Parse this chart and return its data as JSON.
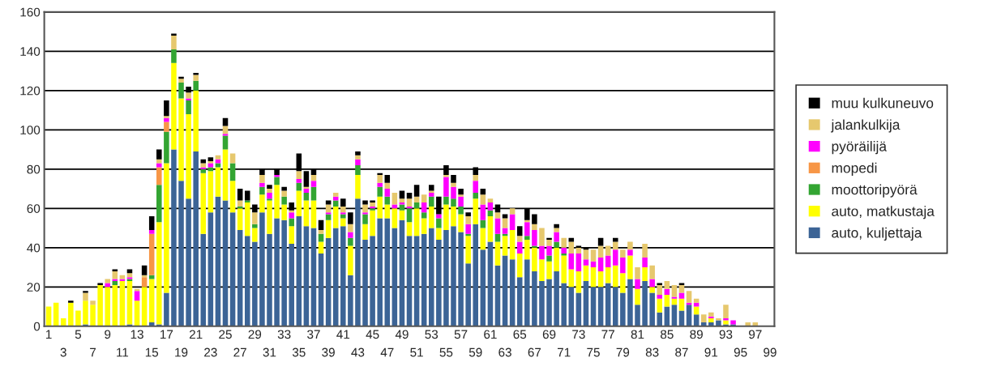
{
  "chart_data": {
    "type": "bar",
    "stacked": true,
    "categories": [
      "1",
      null,
      "3",
      null,
      "5",
      null,
      "7",
      null,
      "9",
      null,
      "11",
      null,
      "13",
      null,
      "15",
      null,
      "17",
      null,
      "19",
      null,
      "21",
      null,
      "23",
      null,
      "25",
      null,
      "27",
      null,
      "29",
      null,
      "31",
      null,
      "33",
      null,
      "35",
      null,
      "37",
      null,
      "39",
      null,
      "41",
      null,
      "43",
      null,
      "45",
      null,
      "47",
      null,
      "49",
      null,
      "51",
      null,
      "53",
      null,
      "55",
      null,
      "57",
      null,
      "59",
      null,
      "61",
      null,
      "63",
      null,
      "65",
      null,
      "67",
      null,
      "69",
      null,
      "71",
      null,
      "73",
      null,
      "75",
      null,
      "77",
      null,
      "79",
      null,
      "81",
      null,
      "83",
      null,
      "85",
      null,
      "87",
      null,
      "89",
      null,
      "91",
      null,
      "93",
      null,
      "95",
      null,
      "97",
      null,
      "99"
    ],
    "series": [
      {
        "name": "auto, kuljettaja",
        "color": "#3c6496",
        "values": [
          0,
          0,
          0,
          0,
          0,
          1,
          0,
          0,
          0,
          0,
          0,
          1,
          0,
          0,
          2,
          1,
          17,
          90,
          74,
          65,
          89,
          47,
          58,
          66,
          64,
          58,
          49,
          46,
          43,
          58,
          47,
          55,
          54,
          42,
          56,
          51,
          50,
          37,
          45,
          50,
          51,
          26,
          65,
          44,
          46,
          55,
          55,
          50,
          54,
          46,
          46,
          47,
          50,
          44,
          49,
          51,
          48,
          32,
          52,
          39,
          43,
          31,
          36,
          34,
          25,
          34,
          28,
          23,
          24,
          28,
          22,
          20,
          17,
          23,
          20,
          20,
          22,
          20,
          17,
          24,
          11,
          23,
          17,
          7,
          10,
          11,
          8,
          11,
          6,
          2,
          2,
          3,
          1,
          1,
          0,
          0,
          0,
          0,
          0
        ]
      },
      {
        "name": "auto, matkustaja",
        "color": "#ffff00",
        "values": [
          10,
          12,
          4,
          12,
          8,
          12,
          11,
          21,
          20,
          21,
          23,
          22,
          13,
          20,
          22,
          52,
          66,
          44,
          42,
          43,
          31,
          31,
          21,
          15,
          26,
          16,
          11,
          17,
          7,
          9,
          17,
          17,
          8,
          9,
          13,
          13,
          14,
          6,
          9,
          11,
          4,
          15,
          12,
          8,
          13,
          11,
          7,
          10,
          5,
          7,
          14,
          8,
          11,
          6,
          13,
          10,
          9,
          14,
          13,
          11,
          13,
          12,
          10,
          15,
          12,
          10,
          12,
          11,
          9,
          12,
          14,
          9,
          11,
          8,
          10,
          8,
          8,
          11,
          10,
          12,
          8,
          7,
          3,
          7,
          6,
          3,
          6,
          0,
          4,
          0,
          2,
          0,
          2,
          0,
          0,
          0,
          0,
          0,
          0
        ]
      },
      {
        "name": "moottoripyörä",
        "color": "#33a532",
        "values": [
          0,
          0,
          0,
          0,
          0,
          0,
          0,
          0,
          0,
          2,
          0,
          1,
          0,
          0,
          2,
          19,
          16,
          7,
          8,
          7,
          5,
          2,
          2,
          2,
          7,
          9,
          1,
          1,
          2,
          4,
          1,
          4,
          4,
          4,
          4,
          4,
          7,
          4,
          3,
          3,
          2,
          4,
          5,
          5,
          1,
          5,
          4,
          0,
          3,
          7,
          3,
          3,
          5,
          5,
          4,
          4,
          4,
          1,
          3,
          4,
          3,
          4,
          1,
          0,
          0,
          2,
          1,
          0,
          3,
          3,
          1,
          0,
          0,
          0,
          0,
          0,
          0,
          0,
          0,
          0,
          0,
          0,
          0,
          0,
          0,
          0,
          0,
          0,
          0,
          0,
          0,
          0,
          0,
          0,
          0,
          0,
          0,
          0,
          0
        ]
      },
      {
        "name": "mopedi",
        "color": "#f79646",
        "values": [
          0,
          0,
          0,
          0,
          0,
          0,
          0,
          0,
          0,
          0,
          0,
          0,
          0,
          5,
          21,
          9,
          5,
          0,
          0,
          0,
          0,
          0,
          0,
          0,
          0,
          0,
          0,
          0,
          0,
          0,
          0,
          0,
          0,
          0,
          0,
          0,
          0,
          0,
          0,
          0,
          0,
          0,
          0,
          0,
          0,
          0,
          0,
          0,
          0,
          0,
          0,
          0,
          0,
          0,
          0,
          0,
          0,
          0,
          0,
          0,
          0,
          0,
          0,
          0,
          0,
          0,
          0,
          0,
          0,
          0,
          0,
          0,
          0,
          0,
          0,
          0,
          0,
          0,
          0,
          0,
          0,
          0,
          0,
          0,
          0,
          0,
          0,
          0,
          0,
          0,
          0,
          0,
          0,
          0,
          0,
          0,
          0,
          0,
          0
        ]
      },
      {
        "name": "pyöräilijä",
        "color": "#ff00ff",
        "values": [
          0,
          0,
          0,
          0,
          0,
          0,
          0,
          0,
          2,
          1,
          1,
          1,
          5,
          0,
          2,
          2,
          2,
          0,
          0,
          1,
          0,
          1,
          2,
          2,
          1,
          0,
          0,
          0,
          0,
          2,
          3,
          1,
          0,
          3,
          2,
          2,
          3,
          0,
          1,
          2,
          1,
          3,
          3,
          1,
          1,
          2,
          4,
          2,
          1,
          1,
          0,
          5,
          2,
          2,
          10,
          6,
          5,
          5,
          6,
          8,
          4,
          8,
          3,
          8,
          6,
          7,
          8,
          7,
          5,
          5,
          3,
          8,
          9,
          3,
          3,
          7,
          6,
          8,
          8,
          3,
          5,
          5,
          4,
          2,
          3,
          1,
          3,
          1,
          2,
          0,
          1,
          0,
          1,
          2,
          0,
          0,
          0,
          0,
          0
        ]
      },
      {
        "name": "jalankulkija",
        "color": "#e6c86e",
        "values": [
          0,
          0,
          0,
          0,
          0,
          4,
          2,
          0,
          2,
          4,
          2,
          2,
          1,
          1,
          0,
          2,
          1,
          7,
          2,
          3,
          3,
          2,
          1,
          2,
          4,
          5,
          3,
          0,
          6,
          4,
          2,
          0,
          3,
          1,
          4,
          1,
          3,
          2,
          4,
          2,
          3,
          4,
          2,
          4,
          2,
          4,
          3,
          6,
          2,
          4,
          3,
          4,
          1,
          0,
          1,
          2,
          1,
          4,
          3,
          5,
          2,
          3,
          5,
          3,
          3,
          1,
          3,
          9,
          3,
          2,
          5,
          6,
          3,
          5,
          6,
          6,
          5,
          4,
          4,
          4,
          6,
          7,
          7,
          5,
          4,
          6,
          4,
          6,
          2,
          4,
          2,
          1,
          7,
          0,
          0,
          2,
          2,
          0,
          0
        ]
      },
      {
        "name": "muu kulkuneuvo",
        "color": "#000000",
        "values": [
          0,
          0,
          0,
          1,
          0,
          1,
          0,
          1,
          0,
          1,
          0,
          2,
          0,
          5,
          7,
          5,
          8,
          1,
          1,
          3,
          1,
          2,
          2,
          0,
          4,
          0,
          6,
          5,
          4,
          3,
          2,
          3,
          2,
          4,
          9,
          8,
          3,
          5,
          2,
          0,
          4,
          6,
          2,
          2,
          1,
          1,
          4,
          0,
          4,
          3,
          6,
          0,
          3,
          9,
          5,
          4,
          3,
          2,
          4,
          3,
          0,
          4,
          2,
          0,
          5,
          6,
          5,
          0,
          1,
          2,
          0,
          2,
          1,
          1,
          0,
          4,
          0,
          2,
          0,
          0,
          0,
          0,
          0,
          1,
          0,
          0,
          1,
          0,
          0,
          0,
          0,
          0,
          0,
          0,
          0,
          0,
          0,
          0,
          0
        ]
      }
    ],
    "ylim": [
      0,
      160
    ],
    "yticks": [
      0,
      20,
      40,
      60,
      80,
      100,
      120,
      140,
      160
    ],
    "grid": "y",
    "legend": "right"
  }
}
